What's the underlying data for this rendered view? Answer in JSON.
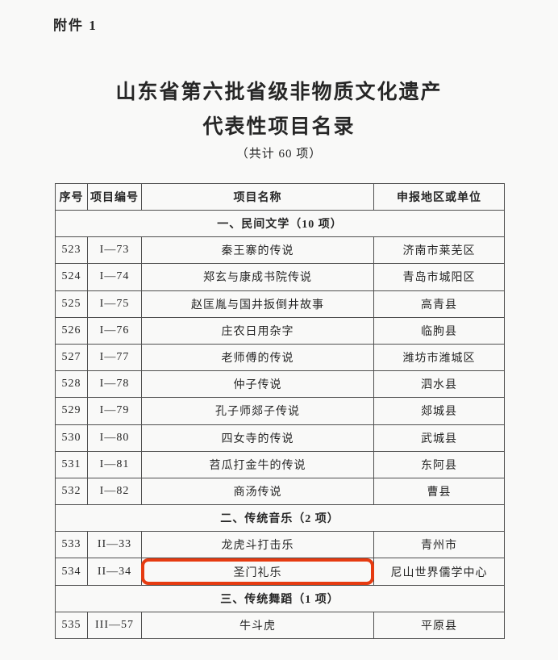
{
  "page": {
    "attachment_label": "附件 1",
    "title_line1": "山东省第六批省级非物质文化遗产",
    "title_line2": "代表性项目名录",
    "subtitle": "（共计 60 项）"
  },
  "table": {
    "headers": [
      "序号",
      "项目编号",
      "项目名称",
      "申报地区或单位"
    ],
    "highlight_color": "#e63b11",
    "rows": [
      {
        "type": "section",
        "label": "一、民间文学（10 项）"
      },
      {
        "type": "item",
        "no": "523",
        "code": "I—73",
        "name": "秦王寨的传说",
        "unit": "济南市莱芜区"
      },
      {
        "type": "item",
        "no": "524",
        "code": "I—74",
        "name": "郑玄与康成书院传说",
        "unit": "青岛市城阳区"
      },
      {
        "type": "item",
        "no": "525",
        "code": "I—75",
        "name": "赵匡胤与国井扳倒井故事",
        "unit": "高青县"
      },
      {
        "type": "item",
        "no": "526",
        "code": "I—76",
        "name": "庄农日用杂字",
        "unit": "临朐县"
      },
      {
        "type": "item",
        "no": "527",
        "code": "I—77",
        "name": "老师傅的传说",
        "unit": "潍坊市潍城区"
      },
      {
        "type": "item",
        "no": "528",
        "code": "I—78",
        "name": "仲子传说",
        "unit": "泗水县"
      },
      {
        "type": "item",
        "no": "529",
        "code": "I—79",
        "name": "孔子师郯子传说",
        "unit": "郯城县"
      },
      {
        "type": "item",
        "no": "530",
        "code": "I—80",
        "name": "四女寺的传说",
        "unit": "武城县"
      },
      {
        "type": "item",
        "no": "531",
        "code": "I—81",
        "name": "苕瓜打金牛的传说",
        "unit": "东阿县"
      },
      {
        "type": "item",
        "no": "532",
        "code": "I—82",
        "name": "商汤传说",
        "unit": "曹县"
      },
      {
        "type": "section",
        "label": "二、传统音乐（2 项）"
      },
      {
        "type": "item",
        "no": "533",
        "code": "II—33",
        "name": "龙虎斗打击乐",
        "unit": "青州市"
      },
      {
        "type": "item",
        "no": "534",
        "code": "II—34",
        "name": "圣门礼乐",
        "unit": "尼山世界儒学中心",
        "highlighted": true
      },
      {
        "type": "section",
        "label": "三、传统舞蹈（1 项）"
      },
      {
        "type": "item",
        "no": "535",
        "code": "III—57",
        "name": "牛斗虎",
        "unit": "平原县"
      }
    ]
  }
}
